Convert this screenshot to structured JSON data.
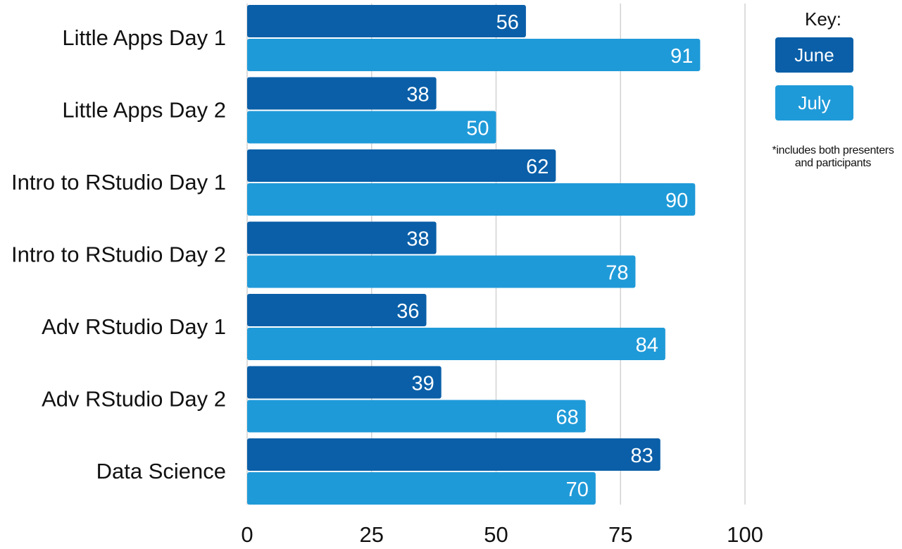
{
  "chart_data": {
    "type": "bar",
    "orientation": "horizontal",
    "categories": [
      "Little Apps Day 1",
      "Little Apps Day 2",
      "Intro to RStudio Day 1",
      "Intro to RStudio Day 2",
      "Adv RStudio Day 1",
      "Adv RStudio Day 2",
      "Data Science"
    ],
    "series": [
      {
        "name": "June",
        "color": "#0a5fa8",
        "values": [
          56,
          38,
          62,
          38,
          36,
          39,
          83
        ]
      },
      {
        "name": "July",
        "color": "#1f9ad8",
        "values": [
          91,
          50,
          90,
          78,
          84,
          68,
          70
        ]
      }
    ],
    "xlim": [
      0,
      100
    ],
    "xticks": [
      0,
      25,
      50,
      75,
      100
    ],
    "xtick_labels": [
      "0",
      "25",
      "50",
      "75",
      "100"
    ],
    "grid": true,
    "legend": {
      "title": "Key:",
      "placement": "right",
      "entries": [
        "June",
        "July"
      ],
      "note_lines": [
        "*includes both presenters",
        "and participants"
      ]
    }
  }
}
